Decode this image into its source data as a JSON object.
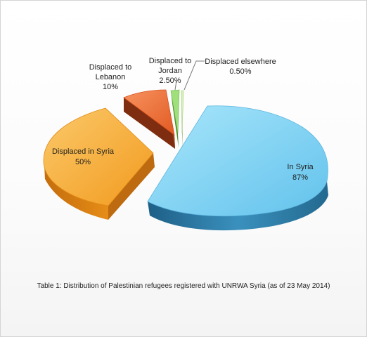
{
  "chart_data": {
    "type": "pie",
    "style": "3d-exploded",
    "slices": [
      {
        "name": "In Syria",
        "value": 87,
        "label": "87%",
        "color": "#7fd2f2"
      },
      {
        "name": "Displaced in Syria",
        "value": 50,
        "label": "50%",
        "color": "#f5a532"
      },
      {
        "name": "Displaced to Lebanon",
        "value": 10,
        "label": "10%",
        "color": "#f0783c"
      },
      {
        "name": "Displaced to Jordan",
        "value": 2.5,
        "label": "2.50%",
        "color": "#9fe07a"
      },
      {
        "name": "Displaced elsewhere",
        "value": 0.5,
        "label": "0.50%",
        "color": "#d8f0b4"
      }
    ],
    "slice_text": {
      "in_syria": [
        "In Syria",
        "87%"
      ],
      "displaced_syria": [
        "Displaced in Syria",
        "50%"
      ],
      "lebanon": [
        "Displaced to",
        "Lebanon",
        "10%"
      ],
      "jordan": [
        "Displaced to",
        "Jordan",
        "2.50%"
      ],
      "elsewhere": [
        "Displaced elsewhere",
        "0.50%"
      ]
    },
    "caption": "Table 1: Distribution of Palestinian refugees registered with UNRWA Syria (as of 23 May 2014)"
  }
}
